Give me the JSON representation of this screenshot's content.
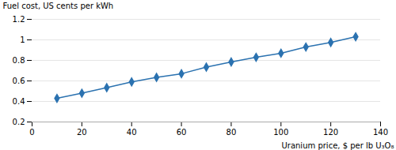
{
  "chart_data": {
    "type": "line",
    "x": [
      10,
      20,
      30,
      40,
      50,
      60,
      70,
      80,
      90,
      100,
      110,
      120,
      130
    ],
    "values": [
      0.43,
      0.48,
      0.535,
      0.59,
      0.635,
      0.67,
      0.735,
      0.785,
      0.83,
      0.87,
      0.93,
      0.975,
      1.03
    ],
    "color": "#2B72B0",
    "marker": "diamond",
    "xlabel": "Uranium price, $ per lb U₃O₈",
    "ylabel": "Fuel cost, US cents per kWh",
    "xlim": [
      0,
      140
    ],
    "ylim": [
      0.2,
      1.2
    ],
    "xticks": [
      0,
      20,
      40,
      60,
      80,
      100,
      120,
      140
    ],
    "yticks": [
      0.2,
      0.4,
      0.6,
      0.8,
      1,
      1.2
    ],
    "grid": "y"
  }
}
